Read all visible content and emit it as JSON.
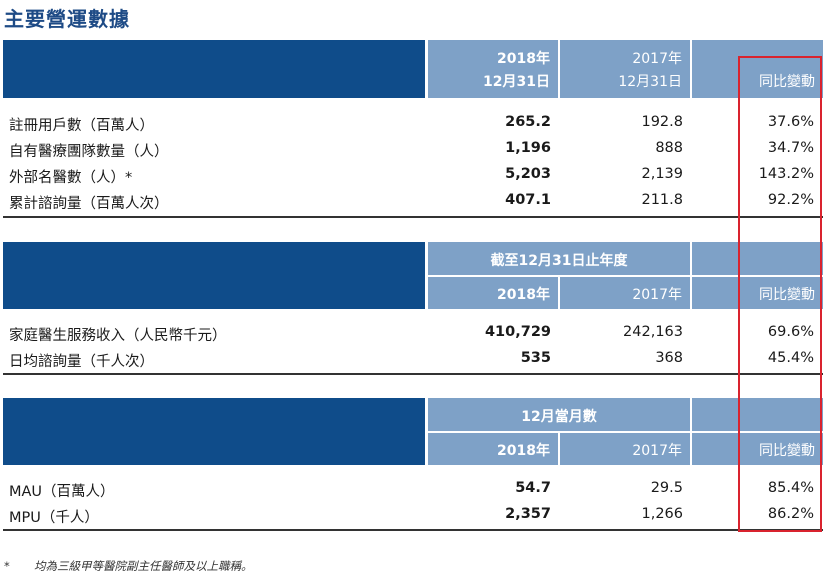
{
  "title": "主要營運數據",
  "sections": [
    {
      "header": {
        "col1_line1": "2018年",
        "col1_line2": "12月31日",
        "col2_line1": "2017年",
        "col2_line2": "12月31日",
        "col3": "同比變動"
      },
      "rows": [
        {
          "label": "註冊用戶數（百萬人）",
          "v2018": "265.2",
          "v2017": "192.8",
          "change": "37.6%"
        },
        {
          "label": "自有醫療團隊數量（人）",
          "v2018": "1,196",
          "v2017": "888",
          "change": "34.7%"
        },
        {
          "label": "外部名醫數（人）*",
          "v2018": "5,203",
          "v2017": "2,139",
          "change": "143.2%"
        },
        {
          "label": "累計諮詢量（百萬人次）",
          "v2018": "407.1",
          "v2017": "211.8",
          "change": "92.2%"
        }
      ]
    },
    {
      "header": {
        "span": "截至12月31日止年度",
        "col1": "2018年",
        "col2": "2017年",
        "col3": "同比變動"
      },
      "rows": [
        {
          "label": "家庭醫生服務收入（人民幣千元）",
          "v2018": "410,729",
          "v2017": "242,163",
          "change": "69.6%"
        },
        {
          "label": "日均諮詢量（千人次）",
          "v2018": "535",
          "v2017": "368",
          "change": "45.4%"
        }
      ]
    },
    {
      "header": {
        "span": "12月當月數",
        "col1": "2018年",
        "col2": "2017年",
        "col3": "同比變動"
      },
      "rows": [
        {
          "label": "MAU（百萬人）",
          "v2018": "54.7",
          "v2017": "29.5",
          "change": "85.4%"
        },
        {
          "label": "MPU（千人）",
          "v2018": "2,357",
          "v2017": "1,266",
          "change": "86.2%"
        }
      ]
    }
  ],
  "footnote": {
    "mark": "*",
    "text": "均為三級甲等醫院副主任醫師及以上職稱。"
  },
  "colors": {
    "title": "#1e4b86",
    "dark_blue": "#0f4c8a",
    "light_blue": "#7ea1c7",
    "highlight": "#d9232e"
  }
}
